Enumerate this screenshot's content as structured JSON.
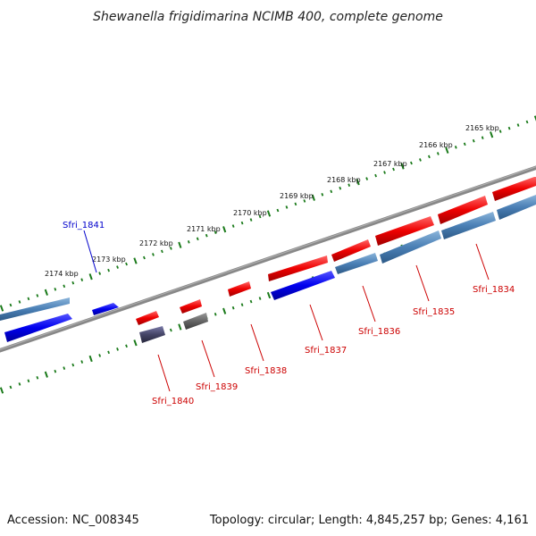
{
  "title": "Shewanella frigidimarina NCIMB 400, complete genome",
  "footer": {
    "accession": "Accession: NC_008345",
    "topology": "Topology: circular; Length: 4,845,257 bp; Genes: 4,161"
  },
  "scale_labels": [
    "2174 kbp",
    "2173 kbp",
    "2172 kbp",
    "2171 kbp",
    "2170 kbp",
    "2169 kbp",
    "2168 kbp",
    "2167 kbp",
    "2166 kbp",
    "2165 kbp"
  ],
  "gene_labels": [
    {
      "name": "Sfri_1841",
      "color": "#0000cc"
    },
    {
      "name": "Sfri_1840",
      "color": "#cc0000"
    },
    {
      "name": "Sfri_1839",
      "color": "#cc0000"
    },
    {
      "name": "Sfri_1838",
      "color": "#cc0000"
    },
    {
      "name": "Sfri_1837",
      "color": "#cc0000"
    },
    {
      "name": "Sfri_1836",
      "color": "#cc0000"
    },
    {
      "name": "Sfri_1835",
      "color": "#cc0000"
    },
    {
      "name": "Sfri_1834",
      "color": "#cc0000"
    }
  ],
  "colors": {
    "backbone": "#808080",
    "tick": "#1a7a1a",
    "cds_forward": "#0000ee",
    "cds_reverse": "#ee0000",
    "rna": "#4a7fb5",
    "pseudo": "#444466",
    "other": "#666666"
  }
}
